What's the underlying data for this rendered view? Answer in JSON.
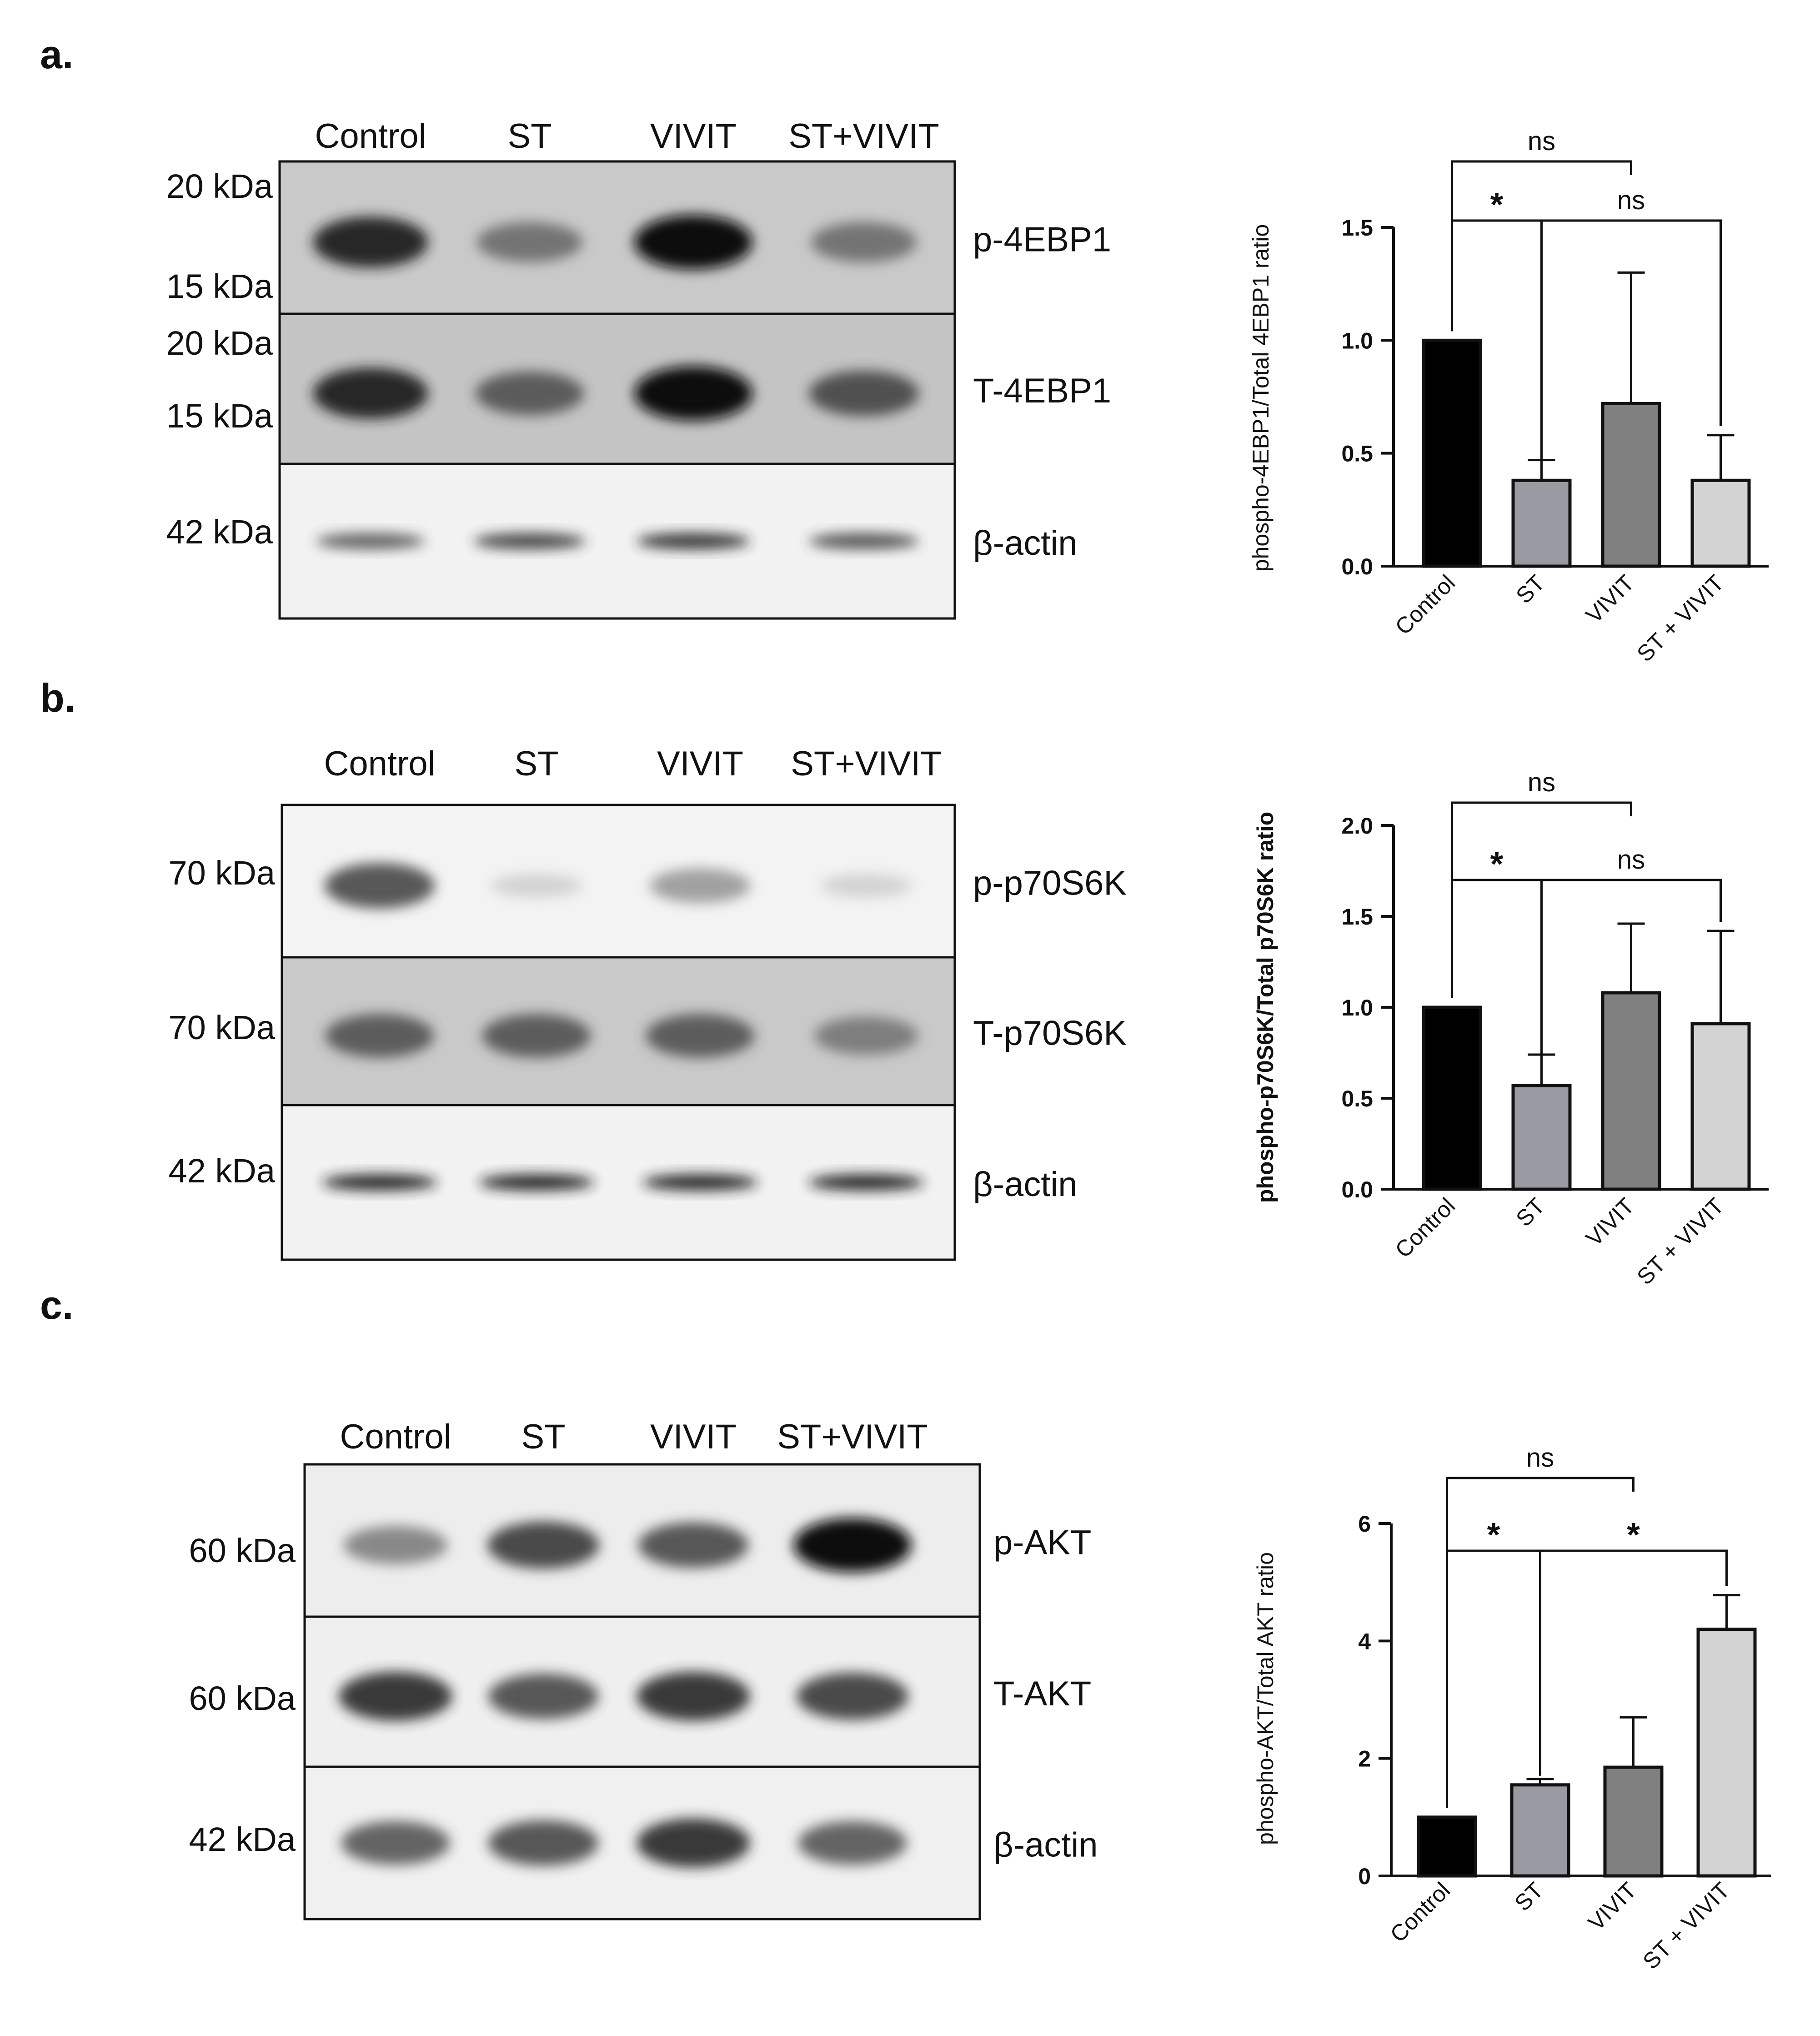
{
  "figure": {
    "panels": [
      {
        "letter": "a.",
        "lanes": [
          "Control",
          "ST",
          "VIVIT",
          "ST+VIVIT"
        ],
        "blots": [
          {
            "protein": "p-4EBP1",
            "markers": [
              "20 kDa",
              "15 kDa"
            ],
            "tone": "#c9c9c9",
            "bands": [
              0.9,
              0.6,
              1.0,
              0.6
            ]
          },
          {
            "protein": "T-4EBP1",
            "markers": [
              "20 kDa",
              "15 kDa"
            ],
            "tone": "#c4c4c4",
            "bands": [
              0.9,
              0.7,
              1.0,
              0.75
            ]
          },
          {
            "protein": "β-actin",
            "markers": [
              "42 kDa"
            ],
            "tone": "#f2f2f2",
            "bands": [
              0.7,
              0.8,
              0.85,
              0.75
            ]
          }
        ]
      },
      {
        "letter": "b.",
        "lanes": [
          "Control",
          "ST",
          "VIVIT",
          "ST+VIVIT"
        ],
        "blots": [
          {
            "protein": "p-p70S6K",
            "markers": [
              "70 kDa"
            ],
            "tone": "#f3f3f3",
            "bands": [
              0.75,
              0.15,
              0.45,
              0.15
            ]
          },
          {
            "protein": "T-p70S6K",
            "markers": [
              "70 kDa"
            ],
            "tone": "#c9c9c9",
            "bands": [
              0.7,
              0.7,
              0.7,
              0.55
            ]
          },
          {
            "protein": "β-actin",
            "markers": [
              "42 kDa"
            ],
            "tone": "#f2f2f2",
            "bands": [
              0.9,
              0.9,
              0.9,
              0.9
            ]
          }
        ]
      },
      {
        "letter": "c.",
        "lanes": [
          "Control",
          "ST",
          "VIVIT",
          "ST+VIVIT"
        ],
        "blots": [
          {
            "protein": "p-AKT",
            "markers": [
              "60 kDa"
            ],
            "tone": "#ededed",
            "bands": [
              0.55,
              0.8,
              0.75,
              1.0
            ]
          },
          {
            "protein": "T-AKT",
            "markers": [
              "60 kDa"
            ],
            "tone": "#efefef",
            "bands": [
              0.85,
              0.75,
              0.85,
              0.8
            ]
          },
          {
            "protein": "β-actin",
            "markers": [
              "42 kDa"
            ],
            "tone": "#f0f0f0",
            "bands": [
              0.7,
              0.75,
              0.85,
              0.7
            ]
          }
        ]
      }
    ]
  },
  "chart_data": [
    {
      "type": "bar",
      "categories": [
        "Control",
        "ST",
        "VIVIT",
        "ST + VIVIT"
      ],
      "values": [
        1.0,
        0.38,
        0.72,
        0.38
      ],
      "errors": [
        0,
        0.09,
        0.58,
        0.2
      ],
      "colors": [
        "#000000",
        "#9a9aa2",
        "#808080",
        "#d3d3d3"
      ],
      "ylabel": "phospho-4EBP1/Total 4EBP1 ratio",
      "ylabel_bold": false,
      "ylim": [
        0,
        1.5
      ],
      "yticks": [
        0.0,
        0.5,
        1.0,
        1.5
      ],
      "ytick_labels": [
        "0.0",
        "0.5",
        "1.0",
        "1.5"
      ],
      "xlabel": "",
      "title": "",
      "significance": [
        {
          "from": 0,
          "to": 2,
          "label": "ns",
          "level": 2
        },
        {
          "from": 0,
          "to": 1,
          "label": "*",
          "level": 1
        },
        {
          "from": 1,
          "to": 3,
          "label": "ns",
          "level": 1
        }
      ]
    },
    {
      "type": "bar",
      "categories": [
        "Control",
        "ST",
        "VIVIT",
        "ST + VIVIT"
      ],
      "values": [
        1.0,
        0.57,
        1.08,
        0.91
      ],
      "errors": [
        0,
        0.17,
        0.38,
        0.51
      ],
      "colors": [
        "#000000",
        "#9a9aa2",
        "#808080",
        "#d3d3d3"
      ],
      "ylabel": "phospho-p70S6K/Total p70S6K ratio",
      "ylabel_bold": true,
      "ylim": [
        0,
        2.0
      ],
      "yticks": [
        0.0,
        0.5,
        1.0,
        1.5,
        2.0
      ],
      "ytick_labels": [
        "0.0",
        "0.5",
        "1.0",
        "1.5",
        "2.0"
      ],
      "xlabel": "",
      "title": "",
      "significance": [
        {
          "from": 0,
          "to": 2,
          "label": "ns",
          "level": 2
        },
        {
          "from": 0,
          "to": 1,
          "label": "*",
          "level": 1
        },
        {
          "from": 1,
          "to": 3,
          "label": "ns",
          "level": 1
        }
      ]
    },
    {
      "type": "bar",
      "categories": [
        "Control",
        "ST",
        "VIVIT",
        "ST + VIVIT"
      ],
      "values": [
        1.0,
        1.55,
        1.85,
        4.2
      ],
      "errors": [
        0,
        0.1,
        0.85,
        0.58
      ],
      "colors": [
        "#000000",
        "#9a9aa2",
        "#808080",
        "#d3d3d3"
      ],
      "ylabel": "phospho-AKT/Total AKT ratio",
      "ylabel_bold": false,
      "ylim": [
        0,
        6
      ],
      "yticks": [
        0,
        2,
        4,
        6
      ],
      "ytick_labels": [
        "0",
        "2",
        "4",
        "6"
      ],
      "xlabel": "",
      "title": "",
      "significance": [
        {
          "from": 0,
          "to": 2,
          "label": "ns",
          "level": 2
        },
        {
          "from": 0,
          "to": 1,
          "label": "*",
          "level": 1
        },
        {
          "from": 1,
          "to": 3,
          "label": "*",
          "level": 1
        }
      ]
    }
  ]
}
